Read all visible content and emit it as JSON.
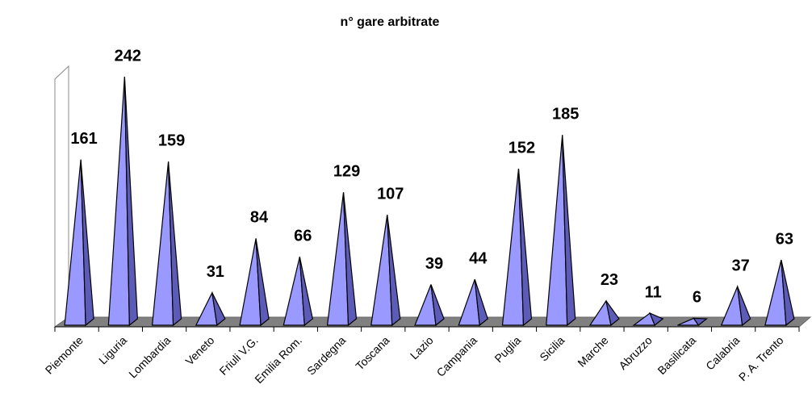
{
  "chart_data": {
    "type": "pyramid",
    "title": "n° gare arbitrate",
    "categories": [
      "Piemonte",
      "Liguria",
      "Lombardia",
      "Veneto",
      "Friuli V.G.",
      "Emilia Rom.",
      "Sardegna",
      "Toscana",
      "Lazio",
      "Campania",
      "Puglia",
      "Sicilia",
      "Marche",
      "Abruzzo",
      "Basilicata",
      "Calabria",
      "P. A. Trento"
    ],
    "values": [
      161,
      242,
      159,
      31,
      84,
      66,
      129,
      107,
      39,
      44,
      152,
      185,
      23,
      11,
      6,
      37,
      63
    ],
    "color": "#9999ff"
  }
}
